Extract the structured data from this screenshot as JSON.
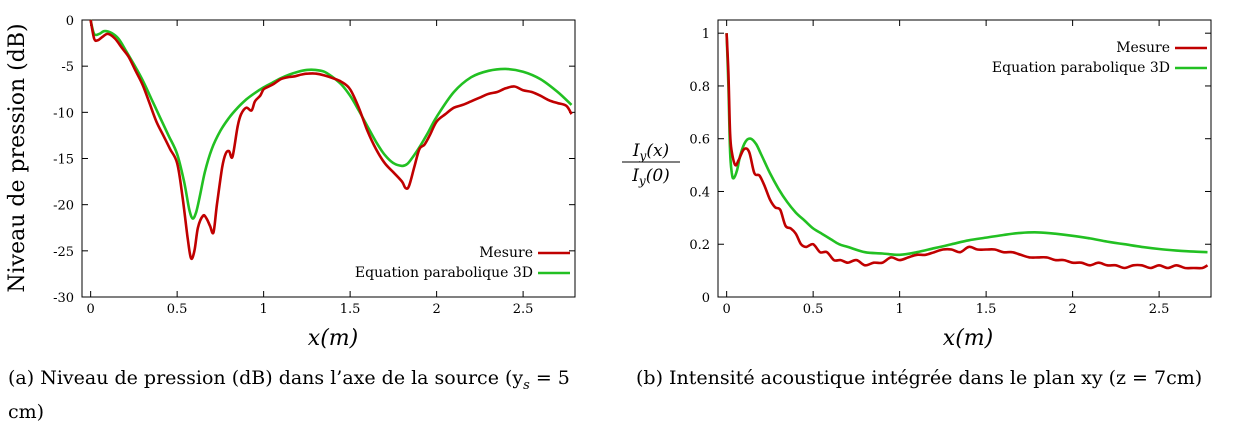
{
  "chart_data": [
    {
      "type": "line",
      "xlabel": "x(m)",
      "ylabel": "Niveau de pression (dB)",
      "xlim": [
        -0.05,
        2.8
      ],
      "ylim": [
        -30,
        0
      ],
      "xticks": [
        "0",
        "0.5",
        "1",
        "1.5",
        "2",
        "2.5"
      ],
      "xtick_values": [
        0,
        0.5,
        1,
        1.5,
        2,
        2.5
      ],
      "yticks": [
        "0",
        "-5",
        "-10",
        "-15",
        "-20",
        "-25",
        "-30"
      ],
      "ytick_values": [
        0,
        -5,
        -10,
        -15,
        -20,
        -25,
        -30
      ],
      "legend_position": "bottom-right",
      "caption": "(a) Niveau de pression (dB) dans l’axe de la source (y",
      "caption_sub": "s",
      "caption_tail": " = 5 cm)",
      "series": [
        {
          "name": "Mesure",
          "color": "#c00000",
          "x": [
            0,
            0.02,
            0.04,
            0.07,
            0.1,
            0.14,
            0.18,
            0.22,
            0.26,
            0.3,
            0.34,
            0.38,
            0.42,
            0.46,
            0.5,
            0.53,
            0.56,
            0.58,
            0.6,
            0.62,
            0.65,
            0.67,
            0.69,
            0.71,
            0.73,
            0.76,
            0.78,
            0.8,
            0.82,
            0.85,
            0.87,
            0.9,
            0.93,
            0.95,
            0.98,
            1.0,
            1.03,
            1.06,
            1.1,
            1.14,
            1.18,
            1.22,
            1.26,
            1.3,
            1.35,
            1.4,
            1.45,
            1.5,
            1.55,
            1.6,
            1.65,
            1.7,
            1.75,
            1.8,
            1.82,
            1.84,
            1.87,
            1.9,
            1.93,
            1.96,
            2.0,
            2.05,
            2.1,
            2.15,
            2.2,
            2.25,
            2.3,
            2.35,
            2.4,
            2.45,
            2.5,
            2.55,
            2.6,
            2.65,
            2.7,
            2.75,
            2.78
          ],
          "y": [
            0,
            -2,
            -2.2,
            -1.8,
            -1.5,
            -2,
            -3,
            -4,
            -5.5,
            -7,
            -9,
            -11,
            -12.5,
            -14,
            -15.5,
            -19,
            -23.5,
            -25.8,
            -25,
            -22.5,
            -21.2,
            -21.5,
            -22.3,
            -23,
            -20,
            -16,
            -14.5,
            -14.2,
            -14.8,
            -11.5,
            -10.2,
            -9.5,
            -9.8,
            -8.8,
            -8.2,
            -7.5,
            -7.2,
            -6.9,
            -6.4,
            -6.2,
            -6.1,
            -5.9,
            -5.8,
            -5.8,
            -6,
            -6.3,
            -6.7,
            -7.5,
            -9.5,
            -12,
            -14,
            -15.5,
            -16.5,
            -17.5,
            -18.2,
            -18,
            -16,
            -14,
            -13.5,
            -12.5,
            -11,
            -10.2,
            -9.5,
            -9.2,
            -8.8,
            -8.4,
            -8,
            -7.8,
            -7.4,
            -7.2,
            -7.6,
            -7.8,
            -8.2,
            -8.7,
            -9,
            -9.3,
            -10.2
          ]
        },
        {
          "name": "Equation parabolique 3D",
          "color": "#22c022",
          "x": [
            0,
            0.02,
            0.05,
            0.08,
            0.12,
            0.16,
            0.2,
            0.25,
            0.3,
            0.35,
            0.4,
            0.45,
            0.5,
            0.54,
            0.57,
            0.59,
            0.61,
            0.63,
            0.66,
            0.7,
            0.75,
            0.8,
            0.85,
            0.9,
            0.95,
            1.0,
            1.05,
            1.1,
            1.15,
            1.2,
            1.25,
            1.3,
            1.35,
            1.4,
            1.45,
            1.5,
            1.55,
            1.6,
            1.65,
            1.7,
            1.75,
            1.8,
            1.83,
            1.86,
            1.9,
            1.95,
            2.0,
            2.1,
            2.2,
            2.3,
            2.4,
            2.5,
            2.6,
            2.7,
            2.78
          ],
          "y": [
            0,
            -1.5,
            -1.5,
            -1.2,
            -1.4,
            -2,
            -3.2,
            -4.8,
            -6.5,
            -8.5,
            -10.5,
            -12.5,
            -14.5,
            -17.5,
            -20.5,
            -21.5,
            -20.8,
            -19.2,
            -16.5,
            -14,
            -12,
            -10.6,
            -9.5,
            -8.6,
            -7.9,
            -7.3,
            -6.8,
            -6.3,
            -5.9,
            -5.6,
            -5.4,
            -5.4,
            -5.6,
            -6.2,
            -7,
            -8.2,
            -9.8,
            -11.5,
            -13.2,
            -14.6,
            -15.5,
            -15.8,
            -15.6,
            -14.9,
            -13.8,
            -12.2,
            -10.5,
            -7.8,
            -6.2,
            -5.5,
            -5.3,
            -5.6,
            -6.4,
            -7.8,
            -9.2
          ]
        }
      ]
    },
    {
      "type": "line",
      "xlabel": "x(m)",
      "ylabel": "",
      "ylabel_num": "I",
      "ylabel_num_sub": "y",
      "ylabel_num_arg": "(x)",
      "ylabel_den": "I",
      "ylabel_den_sub": "y",
      "ylabel_den_arg": "(0)",
      "xlim": [
        -0.05,
        2.8
      ],
      "ylim": [
        0,
        1.05
      ],
      "xticks": [
        "0",
        "0.5",
        "1",
        "1.5",
        "2",
        "2.5"
      ],
      "xtick_values": [
        0,
        0.5,
        1,
        1.5,
        2,
        2.5
      ],
      "yticks": [
        "0",
        "0.2",
        "0.4",
        "0.6",
        "0.8",
        "1"
      ],
      "ytick_values": [
        0,
        0.2,
        0.4,
        0.6,
        0.8,
        1
      ],
      "legend_position": "top-right",
      "caption": "(b) Intensité acoustique intégrée dans le plan xy (z = 7cm)",
      "series": [
        {
          "name": "Mesure",
          "color": "#c00000",
          "x": [
            0,
            0.01,
            0.02,
            0.03,
            0.05,
            0.07,
            0.1,
            0.13,
            0.16,
            0.19,
            0.22,
            0.25,
            0.28,
            0.31,
            0.34,
            0.37,
            0.4,
            0.43,
            0.46,
            0.5,
            0.54,
            0.58,
            0.62,
            0.66,
            0.7,
            0.75,
            0.8,
            0.85,
            0.9,
            0.95,
            1.0,
            1.05,
            1.1,
            1.15,
            1.2,
            1.25,
            1.3,
            1.35,
            1.4,
            1.45,
            1.5,
            1.55,
            1.6,
            1.65,
            1.7,
            1.75,
            1.8,
            1.85,
            1.9,
            1.95,
            2.0,
            2.05,
            2.1,
            2.15,
            2.2,
            2.25,
            2.3,
            2.35,
            2.4,
            2.45,
            2.5,
            2.55,
            2.6,
            2.65,
            2.7,
            2.75,
            2.78
          ],
          "y": [
            1.0,
            0.85,
            0.62,
            0.55,
            0.5,
            0.52,
            0.56,
            0.55,
            0.47,
            0.46,
            0.42,
            0.37,
            0.34,
            0.33,
            0.27,
            0.26,
            0.24,
            0.2,
            0.19,
            0.2,
            0.17,
            0.17,
            0.14,
            0.14,
            0.13,
            0.14,
            0.12,
            0.13,
            0.13,
            0.15,
            0.14,
            0.15,
            0.16,
            0.16,
            0.17,
            0.18,
            0.18,
            0.17,
            0.19,
            0.18,
            0.18,
            0.18,
            0.17,
            0.17,
            0.16,
            0.15,
            0.15,
            0.15,
            0.14,
            0.14,
            0.13,
            0.13,
            0.12,
            0.13,
            0.12,
            0.12,
            0.11,
            0.12,
            0.12,
            0.11,
            0.12,
            0.11,
            0.12,
            0.11,
            0.11,
            0.11,
            0.12
          ]
        },
        {
          "name": "Equation parabolique 3D",
          "color": "#22c022",
          "x": [
            0,
            0.01,
            0.02,
            0.03,
            0.04,
            0.06,
            0.08,
            0.11,
            0.14,
            0.17,
            0.2,
            0.25,
            0.3,
            0.35,
            0.4,
            0.45,
            0.5,
            0.55,
            0.6,
            0.65,
            0.7,
            0.8,
            0.9,
            1.0,
            1.1,
            1.2,
            1.3,
            1.4,
            1.5,
            1.6,
            1.7,
            1.8,
            1.9,
            2.0,
            2.1,
            2.2,
            2.3,
            2.4,
            2.5,
            2.6,
            2.7,
            2.78
          ],
          "y": [
            1.0,
            0.8,
            0.55,
            0.47,
            0.45,
            0.48,
            0.54,
            0.59,
            0.6,
            0.58,
            0.54,
            0.47,
            0.41,
            0.36,
            0.32,
            0.29,
            0.26,
            0.24,
            0.22,
            0.2,
            0.19,
            0.17,
            0.165,
            0.16,
            0.17,
            0.185,
            0.2,
            0.215,
            0.225,
            0.235,
            0.243,
            0.245,
            0.24,
            0.232,
            0.222,
            0.21,
            0.2,
            0.19,
            0.182,
            0.176,
            0.172,
            0.17
          ]
        }
      ]
    }
  ]
}
